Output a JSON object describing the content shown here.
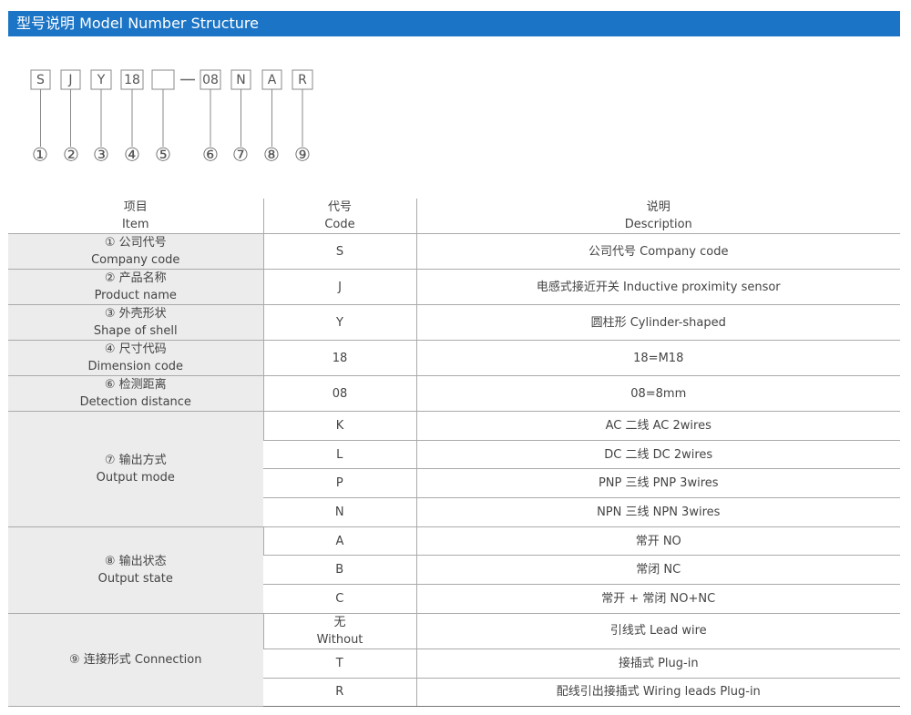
{
  "header": {
    "title": "型号说明 Model Number Structure"
  },
  "code": {
    "left": [
      "S",
      "J",
      "Y",
      "18"
    ],
    "right": [
      "08",
      "N",
      "A",
      "R"
    ],
    "markers": [
      "①",
      "②",
      "③",
      "④",
      "⑤",
      "⑥",
      "⑦",
      "⑧",
      "⑨"
    ]
  },
  "table": {
    "header": [
      [
        "项目",
        "Item"
      ],
      [
        "代号",
        "Code"
      ],
      [
        "说明",
        "Description"
      ]
    ],
    "groups": [
      {
        "item": [
          "① 公司代号",
          "Company code"
        ],
        "rows": [
          {
            "code": [
              "S"
            ],
            "desc": "公司代号 Company code"
          }
        ]
      },
      {
        "item": [
          "② 产品名称",
          "Product name"
        ],
        "rows": [
          {
            "code": [
              "J"
            ],
            "desc": "电感式接近开关 Inductive proximity sensor"
          }
        ]
      },
      {
        "item": [
          "③ 外壳形状",
          "Shape of shell"
        ],
        "rows": [
          {
            "code": [
              "Y"
            ],
            "desc": "圆柱形 Cylinder-shaped"
          }
        ]
      },
      {
        "item": [
          "④ 尺寸代码",
          "Dimension code"
        ],
        "rows": [
          {
            "code": [
              "18"
            ],
            "desc": "18=M18"
          }
        ]
      },
      {
        "item": [
          "⑥ 检测距离",
          "Detection distance"
        ],
        "rows": [
          {
            "code": [
              "08"
            ],
            "desc": "08=8mm"
          }
        ]
      },
      {
        "item": [
          "⑦ 输出方式",
          "Output mode"
        ],
        "rows": [
          {
            "code": [
              "K"
            ],
            "desc": "AC 二线 AC 2wires"
          },
          {
            "code": [
              "L"
            ],
            "desc": "DC 二线 DC 2wires"
          },
          {
            "code": [
              "P"
            ],
            "desc": "PNP 三线 PNP 3wires"
          },
          {
            "code": [
              "N"
            ],
            "desc": "NPN 三线 NPN 3wires"
          }
        ]
      },
      {
        "item": [
          "⑧ 输出状态",
          "Output state"
        ],
        "rows": [
          {
            "code": [
              "A"
            ],
            "desc": "常开 NO"
          },
          {
            "code": [
              "B"
            ],
            "desc": "常闭 NC"
          },
          {
            "code": [
              "C"
            ],
            "desc": "常开 + 常闭 NO+NC"
          }
        ]
      },
      {
        "item": [
          "⑨ 连接形式 Connection"
        ],
        "rows": [
          {
            "code": [
              "无",
              "Without"
            ],
            "desc": "引线式 Lead wire"
          },
          {
            "code": [
              "T"
            ],
            "desc": "接插式 Plug-in"
          },
          {
            "code": [
              "R"
            ],
            "desc": "配线引出接插式 Wiring leads Plug-in"
          }
        ]
      }
    ]
  }
}
